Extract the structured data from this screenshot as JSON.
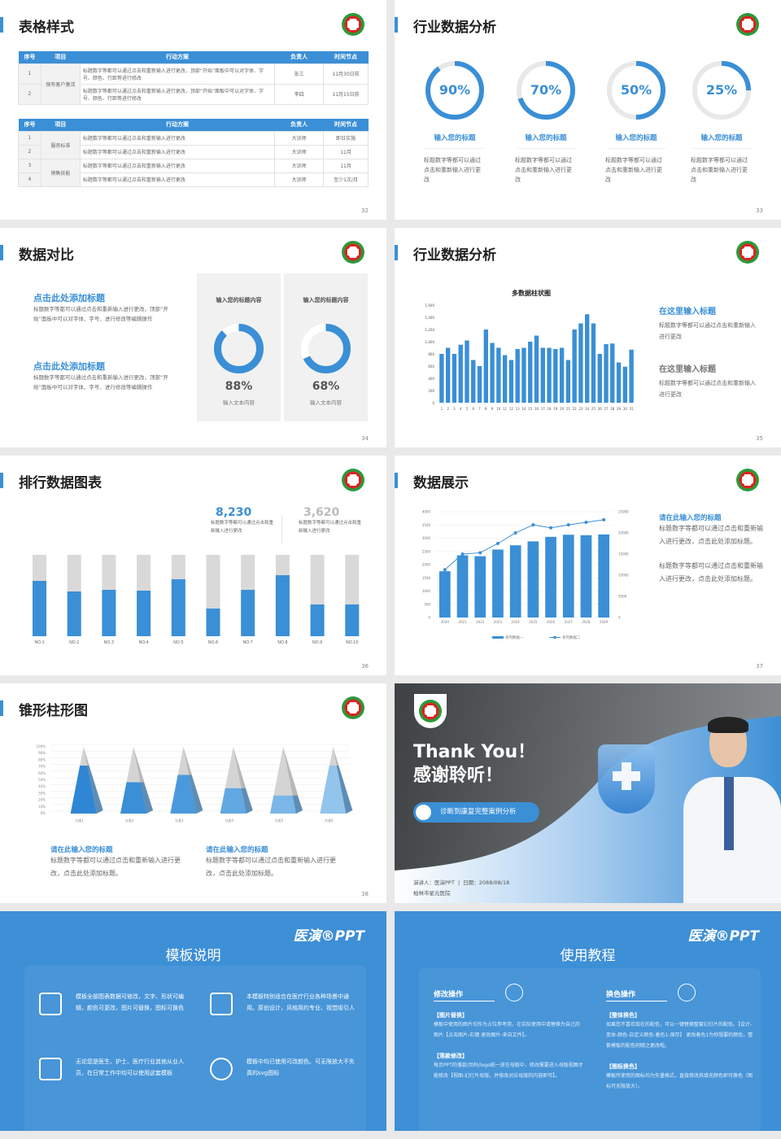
{
  "s32": {
    "title": "表格样式",
    "page": "32",
    "t1": {
      "headers": [
        "序号",
        "项目",
        "行动方案",
        "负责人",
        "时间节点"
      ],
      "group": "保有客户激活",
      "rows": [
        [
          "1",
          "标题数字等都可以通过点击和重新输入进行更改，顶部“开始”面板中可以对字体、字号、颜色、行距等进行修改",
          "张三",
          "11月30日前"
        ],
        [
          "2",
          "标题数字等都可以通过点击和重新输入进行更改，顶部“开始”面板中可以对字体、字号、颜色、行距等进行修改",
          "李四",
          "11月15日前"
        ]
      ]
    },
    "t2": {
      "headers": [
        "序号",
        "项目",
        "行动方案",
        "负责人",
        "时间节点"
      ],
      "groups": [
        "服务标准",
        "销售技能"
      ],
      "rows": [
        [
          "1",
          "标题数字等都可以通过点击和重新输入进行更改",
          "大训师",
          "即日实施"
        ],
        [
          "2",
          "标题数字等都可以通过点击和重新输入进行更改",
          "大训师",
          "11月"
        ],
        [
          "3",
          "标题数字等都可以通过点击和重新输入进行更改",
          "大训师",
          "11月"
        ],
        [
          "4",
          "标题数字等都可以通过点击和重新输入进行更改",
          "大训师",
          "至少1次/月"
        ]
      ]
    }
  },
  "s33": {
    "title": "行业数据分析",
    "page": "33",
    "items": [
      {
        "value": 90,
        "label": "90%",
        "title": "输入您的标题",
        "desc": "标题数字等都可以通过点击和重新输入进行更改"
      },
      {
        "value": 70,
        "label": "70%",
        "title": "输入您的标题",
        "desc": "标题数字等都可以通过点击和重新输入进行更改"
      },
      {
        "value": 50,
        "label": "50%",
        "title": "输入您的标题",
        "desc": "标题数字等都可以通过点击和重新输入进行更改"
      },
      {
        "value": 25,
        "label": "25%",
        "title": "输入您的标题",
        "desc": "标题数字等都可以通过点击和重新输入进行更改"
      }
    ]
  },
  "s34": {
    "title": "数据对比",
    "page": "34",
    "texts": [
      {
        "title": "点击此处添加标题",
        "desc": "标题数字等都可以通过点击和重新输入进行更改，顶部“开始”面板中可以对字体、字号、进行修改等编辑操作"
      },
      {
        "title": "点击此处添加标题",
        "desc": "标题数字等都可以通过点击和重新输入进行更改，顶部“开始”面板中可以对字体、字号、进行修改等编辑操作"
      }
    ],
    "cards": [
      {
        "title": "输入您的标题内容",
        "value": 88,
        "label": "88%",
        "sub": "输入文本内容"
      },
      {
        "title": "输入您的标题内容",
        "value": 68,
        "label": "68%",
        "sub": "输入文本内容"
      }
    ]
  },
  "s35": {
    "title": "行业数据分析",
    "page": "35",
    "side": [
      {
        "title": "在这里输入标题",
        "desc": "标题数字等都可以通过点击和重新输入进行更改"
      },
      {
        "title": "在这里输入标题",
        "desc": "标题数字等都可以通过点击和重新输入进行更改"
      }
    ]
  },
  "s36": {
    "title": "排行数据图表",
    "page": "36",
    "stats": [
      {
        "value": "8,230",
        "desc": "标题数字等都可以通过点击和重新输入进行更改"
      },
      {
        "value": "3,620",
        "desc": "标题数字等都可以通过点击和重新输入进行更改"
      }
    ]
  },
  "s37": {
    "title": "数据展示",
    "page": "37",
    "side": {
      "title": "请在此输入您的标题",
      "p1": "标题数字等都可以通过点击和重新输入进行更改，点击此处添加标题。",
      "p2": "标题数字等都可以通过点击和重新输入进行更改，点击此处添加标题。"
    }
  },
  "s38": {
    "title": "锥形柱形图",
    "page": "38",
    "texts": [
      {
        "title": "请在此输入您的标题",
        "desc": "标题数字等都可以通过点击和重新输入进行更改，点击此处添加标题。"
      },
      {
        "title": "请在此输入您的标题",
        "desc": "标题数字等都可以通过点击和重新输入进行更改，点击此处添加标题。"
      }
    ]
  },
  "thanks": {
    "en": "Thank You！",
    "cn": "感谢聆听！",
    "button": "诊断到康复完整案例分析",
    "presenter": "演讲人：医演PPT",
    "date": "日期：2088/08/18",
    "org": "柏林市星元医院"
  },
  "desc_slide": {
    "brand": "医演®PPT",
    "title": "模板说明",
    "items": [
      {
        "icon": "ppt-file-icon",
        "text": "模板全部图表数据可修改，文字、形状可编辑，颜色可更改，图片可替换，图标可换色"
      },
      {
        "icon": "layers-icon",
        "text": "本模板特别适合在医疗行业各种场景中通用。原创设计，风格简约专业、视觉吸引人"
      },
      {
        "icon": "user-card-icon",
        "text": "无论您是医生、护士、医疗行业其他从业人员，在日常工作中均可以使用这套模板"
      },
      {
        "icon": "globe-icon",
        "text": "模板中均已使用可改颜色、可无限放大不失真的svg图标"
      }
    ]
  },
  "tutorial": {
    "brand": "医演®PPT",
    "title": "使用教程",
    "cols": [
      {
        "title": "修改操作",
        "icon": "lightbulb-icon",
        "sections": [
          {
            "h": "【图片替换】",
            "t": "模板中使用的图片均作为占位参考用，在实际使用中请替换为自己的图片【点击图片-右键-更改图片-来自文件】。"
          },
          {
            "h": "【落款修改】",
            "t": "每页PPT的落款/页码/logo统一放在母版中，修改需要进入母版视图才能修改【视图-幻灯片母版，并修改对应母版的内容即可】。"
          }
        ]
      },
      {
        "title": "换色操作",
        "icon": "palette-icon",
        "sections": [
          {
            "h": "【整体换色】",
            "t": "如果您不喜欢现在的配色，可以一键替换整套幻灯片的配色。【设计-变体-颜色-自定义颜色-着色1-保存】 更改着色1为你想要的颜色，整套模板的配色则随之更改啦。"
          },
          {
            "h": "【图标换色】",
            "t": "模板所使用的图标均为矢量格式，直接修改其填充颜色即可换色（图标可无限放大）。"
          }
        ]
      }
    ]
  },
  "colors": {
    "accent": "#3a8fd6",
    "track": "#e8e8e8",
    "grey_bar": "#d9d9d9",
    "slide_blue": "#3d8fd6"
  },
  "chart_data": [
    {
      "id": "s35",
      "type": "bar",
      "title": "多数据柱状图",
      "categories": [
        "1",
        "2",
        "3",
        "4",
        "5",
        "6",
        "7",
        "8",
        "9",
        "10",
        "11",
        "12",
        "13",
        "14",
        "15",
        "16",
        "17",
        "18",
        "19",
        "20",
        "21",
        "22",
        "23",
        "24",
        "25",
        "26",
        "27",
        "28",
        "29",
        "30",
        "31"
      ],
      "values": [
        800,
        900,
        800,
        950,
        1020,
        700,
        600,
        1200,
        980,
        900,
        780,
        700,
        880,
        900,
        1000,
        1100,
        900,
        900,
        880,
        900,
        700,
        1200,
        1300,
        1450,
        1300,
        800,
        960,
        970,
        660,
        590,
        870
      ],
      "yticks": [
        "0",
        "200",
        "400",
        "600",
        "800",
        "1,000",
        "1,200",
        "1,400",
        "1,600"
      ],
      "ylim": [
        0,
        1600
      ]
    },
    {
      "id": "s36",
      "type": "bar",
      "stacked_percent": true,
      "categories": [
        "NO.1",
        "NO.2",
        "NO.3",
        "NO.4",
        "NO.5",
        "NO.6",
        "NO.7",
        "NO.8",
        "NO.9",
        "NO.10"
      ],
      "values": [
        68,
        55,
        57,
        56,
        70,
        34,
        57,
        75,
        39,
        39
      ],
      "ylim": [
        0,
        100
      ]
    },
    {
      "id": "s37",
      "type": "bar+line",
      "categories": [
        "2020",
        "2021",
        "2022",
        "2023",
        "2024",
        "2025",
        "2026",
        "2027",
        "2028",
        "2029"
      ],
      "series": [
        {
          "name": "系列数据一",
          "type": "bar",
          "values": [
            1750,
            2350,
            2320,
            2570,
            2730,
            2880,
            3050,
            3130,
            3110,
            3140
          ]
        },
        {
          "name": "系列数据二",
          "type": "line",
          "axis": "right",
          "values": [
            11300,
            15000,
            15300,
            17500,
            20000,
            21900,
            21200,
            21900,
            22500,
            23100
          ]
        }
      ],
      "ylim": [
        0,
        4000
      ],
      "yticks": [
        "0",
        "500",
        "1000",
        "1500",
        "2000",
        "2500",
        "3000",
        "3500",
        "4000"
      ],
      "y2lim": [
        0,
        25000
      ],
      "y2ticks": [
        "0",
        "5000",
        "10000",
        "15000",
        "20000",
        "25000"
      ],
      "legend": "bottom"
    },
    {
      "id": "s38",
      "type": "pyramid",
      "categories": [
        "分类1",
        "分类2",
        "分类3",
        "分类4",
        "分类5",
        "分类6"
      ],
      "values": [
        72,
        47,
        58,
        38,
        27,
        72
      ],
      "yticks": [
        "0%",
        "10%",
        "20%",
        "30%",
        "40%",
        "50%",
        "60%",
        "70%",
        "80%",
        "90%",
        "100%"
      ],
      "ylim": [
        0,
        100
      ]
    }
  ]
}
